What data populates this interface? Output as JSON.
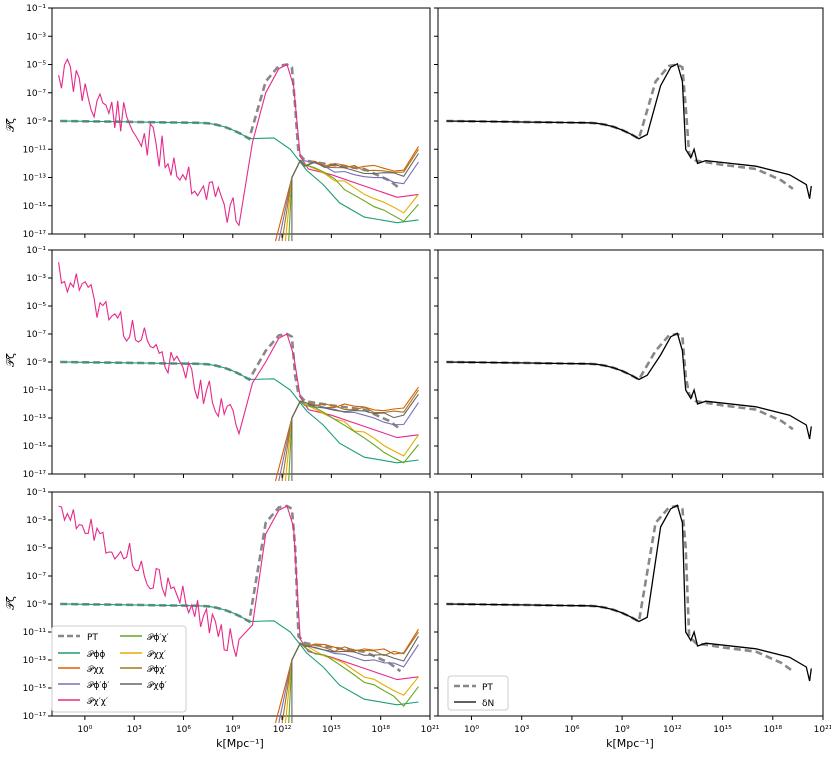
{
  "figure": {
    "xlabel": "k[Mpc⁻¹]",
    "ylabel": "𝒫ζ",
    "x_tick_labels": [
      "10⁰",
      "10³",
      "10⁶",
      "10⁹",
      "10¹²",
      "10¹⁵",
      "10¹⁸",
      "10²¹"
    ],
    "y_tick_labels": [
      "10⁻¹",
      "10⁻³",
      "10⁻⁵",
      "10⁻⁷",
      "10⁻⁹",
      "10⁻¹¹",
      "10⁻¹³",
      "10⁻¹⁵",
      "10⁻¹⁷"
    ]
  },
  "legend_left": {
    "entries": [
      "PT",
      "𝒫ϕϕ",
      "𝒫χχ",
      "𝒫ϕ′ϕ′",
      "𝒫χ′χ′",
      "𝒫ϕ′χ′",
      "𝒫χχ′",
      "𝒫ϕχ′",
      "𝒫χϕ′"
    ]
  },
  "legend_right": {
    "entries": [
      "PT",
      "δN"
    ]
  },
  "colors": {
    "PT": "#888888",
    "deltaN": "#000000",
    "phiphi": "#1b9e77",
    "chichi": "#d95f02",
    "dphidphi": "#7570b3",
    "dchidchi": "#e7298a",
    "dphidchi": "#66a61e",
    "chidchi": "#e6ab02",
    "phidchi": "#a6761d",
    "chidphi": "#666666"
  },
  "chart_data": [
    {
      "type": "line",
      "row": 1,
      "panel": "components",
      "xscale": "log",
      "yscale": "log",
      "xlim": [
        0.01,
        1e+21
      ],
      "ylim": [
        1e-17,
        0.1
      ],
      "peak": {
        "x": 1000000000000.0,
        "y": 1e-05
      },
      "notes": "stochastic 𝒫χ′χ′ falls from ~1e-4 at k~1e-1"
    },
    {
      "type": "line",
      "row": 1,
      "panel": "PT vs δN",
      "xscale": "log",
      "yscale": "log",
      "xlim": [
        0.01,
        1e+21
      ],
      "ylim": [
        1e-17,
        0.1
      ],
      "peak": {
        "x": 1000000000000.0,
        "y": 1e-05
      }
    },
    {
      "type": "line",
      "row": 2,
      "panel": "components",
      "xscale": "log",
      "yscale": "log",
      "xlim": [
        0.01,
        1e+21
      ],
      "ylim": [
        1e-17,
        0.1
      ],
      "peak": {
        "x": 1000000000000.0,
        "y": 1e-07
      }
    },
    {
      "type": "line",
      "row": 2,
      "panel": "PT vs δN",
      "xscale": "log",
      "yscale": "log",
      "xlim": [
        0.01,
        1e+21
      ],
      "ylim": [
        1e-17,
        0.1
      ],
      "peak": {
        "x": 1000000000000.0,
        "y": 1e-07
      }
    },
    {
      "type": "line",
      "row": 3,
      "panel": "components",
      "xscale": "log",
      "yscale": "log",
      "xlim": [
        0.01,
        1e+21
      ],
      "ylim": [
        1e-17,
        0.1
      ],
      "peak": {
        "x": 1000000000000.0,
        "y": 0.01
      }
    },
    {
      "type": "line",
      "row": 3,
      "panel": "PT vs δN",
      "xscale": "log",
      "yscale": "log",
      "xlim": [
        0.01,
        1e+21
      ],
      "ylim": [
        1e-17,
        0.1
      ],
      "peak": {
        "x": 1000000000000.0,
        "y": 0.01
      }
    }
  ]
}
